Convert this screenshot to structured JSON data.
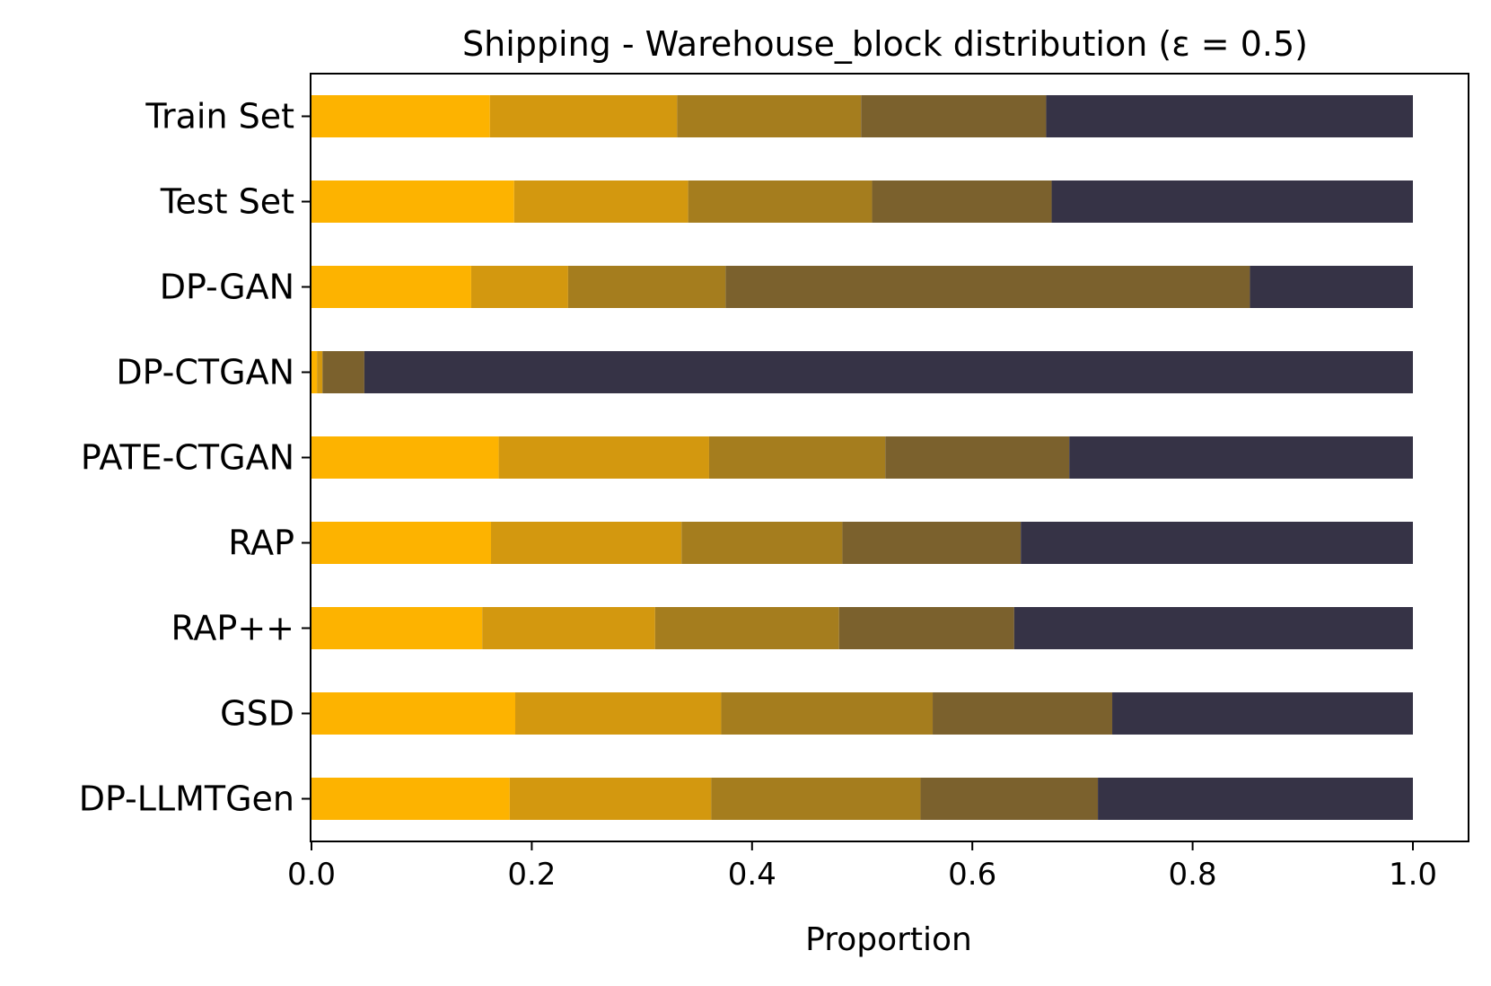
{
  "chart_data": {
    "type": "bar",
    "orientation": "horizontal",
    "stacked": true,
    "title": "Shipping - Warehouse_block distribution (ε = 0.5)",
    "xlabel": "Proportion",
    "ylabel": "",
    "xlim": [
      0.0,
      1.05
    ],
    "xticks": [
      "0.0",
      "0.2",
      "0.4",
      "0.6",
      "0.8",
      "1.0"
    ],
    "grid": false,
    "legend": "none",
    "categories": [
      "Train Set",
      "Test Set",
      "DP-GAN",
      "DP-CTGAN",
      "PATE-CTGAN",
      "RAP",
      "RAP++",
      "GSD",
      "DP-LLMTGen"
    ],
    "series": [
      {
        "color": "#fdb300",
        "values": [
          0.162,
          0.184,
          0.145,
          0.005,
          0.17,
          0.163,
          0.155,
          0.185,
          0.18
        ]
      },
      {
        "color": "#d3980f",
        "values": [
          0.17,
          0.158,
          0.088,
          0.005,
          0.191,
          0.173,
          0.157,
          0.187,
          0.183
        ]
      },
      {
        "color": "#a57d1e",
        "values": [
          0.167,
          0.167,
          0.143,
          0.0,
          0.16,
          0.146,
          0.167,
          0.192,
          0.19
        ]
      },
      {
        "color": "#7b612d",
        "values": [
          0.168,
          0.163,
          0.476,
          0.038,
          0.167,
          0.162,
          0.159,
          0.163,
          0.161
        ]
      },
      {
        "color": "#363346",
        "values": [
          0.333,
          0.328,
          0.148,
          0.952,
          0.312,
          0.356,
          0.362,
          0.273,
          0.286
        ]
      }
    ]
  }
}
